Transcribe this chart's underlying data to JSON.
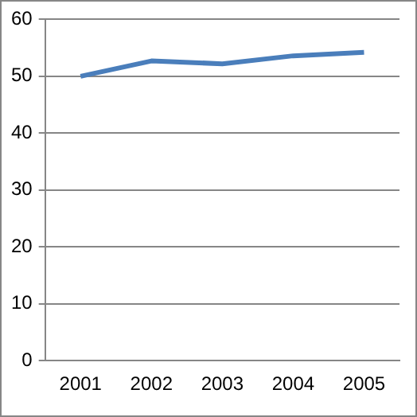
{
  "chart_data": {
    "type": "line",
    "categories": [
      "2001",
      "2002",
      "2003",
      "2004",
      "2005"
    ],
    "series": [
      {
        "color": "#4a7ebb",
        "values": [
          50,
          52.7,
          52.2,
          53.6,
          54.2
        ]
      }
    ],
    "ylim": [
      0,
      60
    ],
    "yticks": [
      0,
      10,
      20,
      30,
      40,
      50,
      60
    ],
    "grid": "y",
    "legend": false,
    "marker": "none",
    "line_style": "solid"
  }
}
